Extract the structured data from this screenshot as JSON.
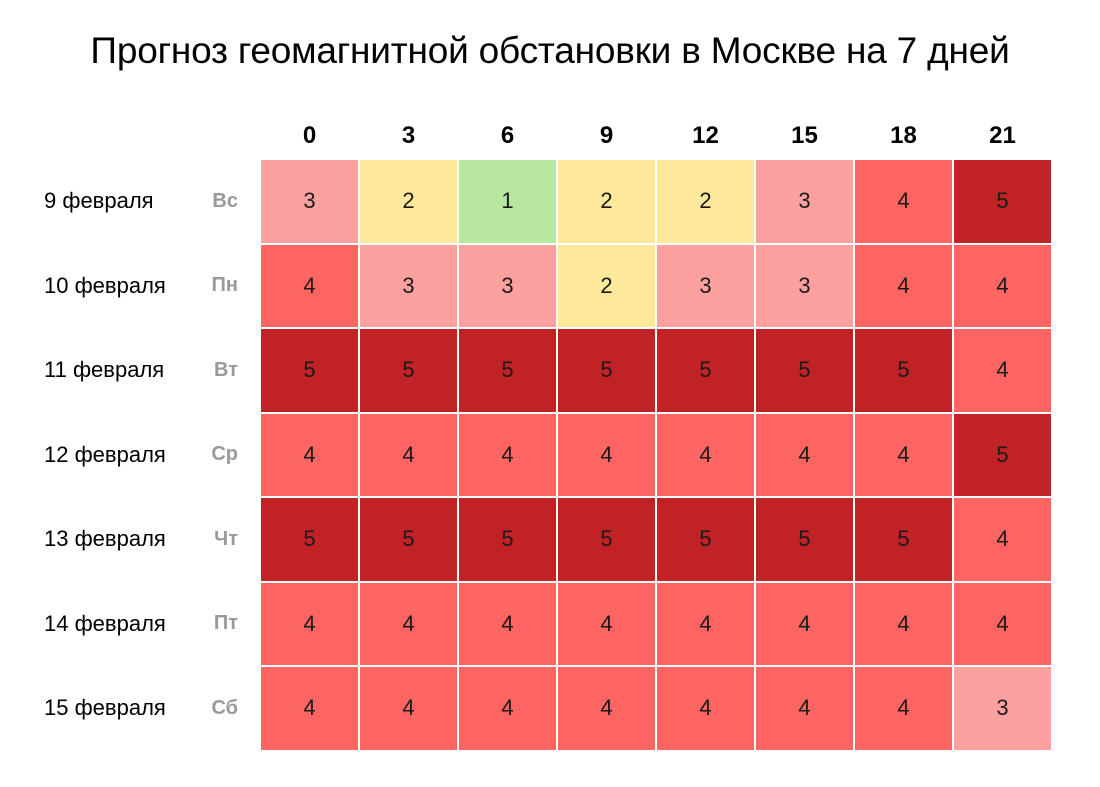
{
  "chart_data": {
    "type": "heatmap",
    "title": "Прогноз геомагнитной обстановки в Москве на 7 дней",
    "x": [
      "0",
      "3",
      "6",
      "9",
      "12",
      "15",
      "18",
      "21"
    ],
    "rows": [
      {
        "date": "9 февраля",
        "dow": "Вс",
        "values": [
          3,
          2,
          1,
          2,
          2,
          3,
          4,
          5
        ]
      },
      {
        "date": "10 февраля",
        "dow": "Пн",
        "values": [
          4,
          3,
          3,
          2,
          3,
          3,
          4,
          4
        ]
      },
      {
        "date": "11 февраля",
        "dow": "Вт",
        "values": [
          5,
          5,
          5,
          5,
          5,
          5,
          5,
          4
        ]
      },
      {
        "date": "12 февраля",
        "dow": "Ср",
        "values": [
          4,
          4,
          4,
          4,
          4,
          4,
          4,
          5
        ]
      },
      {
        "date": "13 февраля",
        "dow": "Чт",
        "values": [
          5,
          5,
          5,
          5,
          5,
          5,
          5,
          4
        ]
      },
      {
        "date": "14 февраля",
        "dow": "Пт",
        "values": [
          4,
          4,
          4,
          4,
          4,
          4,
          4,
          4
        ]
      },
      {
        "date": "15 февраля",
        "dow": "Сб",
        "values": [
          4,
          4,
          4,
          4,
          4,
          4,
          4,
          3
        ]
      }
    ],
    "color_scale": {
      "1": "#b8e8a0",
      "2": "#fde89c",
      "3": "#fca19f",
      "4": "#fd6563",
      "5": "#c12226"
    }
  }
}
